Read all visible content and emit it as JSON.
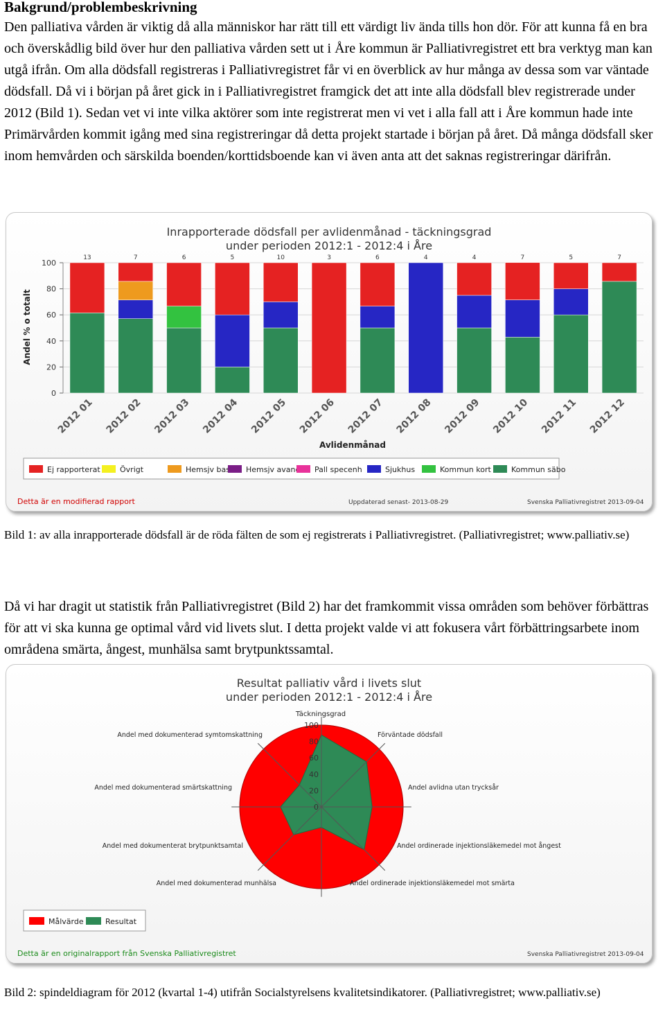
{
  "heading": "Bakgrund/problembeskrivning",
  "paragraph1": "Den palliativa vården är viktig då alla människor har rätt till ett värdigt liv ända tills hon dör. För att kunna få en bra och överskådlig bild över hur den palliativa vården sett ut i Åre kommun är Palliativregistret ett bra verktyg man kan utgå ifrån. Om alla dödsfall registreras i Palliativregistret får vi en överblick av hur många av dessa som var väntade dödsfall. Då vi i början på året gick in i Palliativregistret framgick det att inte alla dödsfall blev registrerade under 2012 (Bild 1). Sedan vet vi inte vilka aktörer som inte registrerat men vi vet i alla fall att i Åre kommun hade inte Primärvården kommit igång med sina registreringar då detta projekt startade i början på året. Då många dödsfall sker inom hemvården och särskilda boenden/korttidsboende kan vi även anta att det saknas registreringar därifrån.",
  "caption1": "Bild 1: av alla inrapporterade dödsfall är de röda fälten de som ej registrerats i Palliativregistret. (Palliativregistret; www.palliativ.se)",
  "paragraph2": "Då vi har dragit ut statistik från Palliativregistret (Bild 2) har det framkommit vissa områden som behöver förbättras för att vi ska kunna ge optimal vård vid livets slut. I detta projekt valde vi att fokusera vårt förbättringsarbete inom områdena smärta, ångest, munhälsa samt brytpunktssamtal.",
  "caption2": "Bild 2: spindeldiagram för 2012 (kvartal 1-4) utifrån Socialstyrelsens kvalitetsindikatorer. (Palliativregistret; www.palliativ.se)",
  "chart1": {
    "footer_left": "Detta är en modifierad rapport",
    "footer_middle": "Uppdaterad senast- 2013-08-29",
    "footer_right": "Svenska Palliativregistret 2013-09-04"
  },
  "chart2": {
    "footer_left": "Detta är en originalrapport från Svenska Palliativregistret",
    "footer_right": "Svenska Palliativregistret 2013-09-04"
  },
  "chart_data": [
    {
      "type": "bar",
      "stacked": true,
      "title": "Inrapporterade dödsfall per avlidenmånad - täckningsgrad",
      "subtitle": "under perioden 2012:1 - 2012:4 i Åre",
      "xlabel": "Avlidenmånad",
      "ylabel": "Andel % o totalt",
      "ylim": [
        0,
        100
      ],
      "yticks": [
        0,
        20,
        40,
        60,
        80,
        100
      ],
      "grid": true,
      "legend_position": "bottom",
      "categories": [
        "2012 01",
        "2012 02",
        "2012 03",
        "2012 04",
        "2012 05",
        "2012 06",
        "2012 07",
        "2012 08",
        "2012 09",
        "2012 10",
        "2012 11",
        "2012 12"
      ],
      "counts": [
        13,
        7,
        6,
        5,
        10,
        3,
        6,
        4,
        4,
        7,
        5,
        7
      ],
      "legend": [
        "Ej rapporterat",
        "Övrigt",
        "Hemsjv basal",
        "Hemsjv avanc",
        "Pall specenh",
        "Sjukhus",
        "Kommun kort",
        "Kommun säbo"
      ],
      "colors": {
        "Ej rapporterat": "#e52222",
        "Övrigt": "#f4f020",
        "Hemsjv basal": "#ee9a1e",
        "Hemsjv avanc": "#7a1d86",
        "Pall specenh": "#e8329a",
        "Sjukhus": "#2626c4",
        "Kommun kort": "#33c240",
        "Kommun säbo": "#2e8a56"
      },
      "series": [
        {
          "name": "Kommun säbo",
          "values": [
            61.5,
            57.1,
            50.0,
            20.0,
            50.0,
            0.0,
            50.0,
            0.0,
            50.0,
            42.9,
            60.0,
            85.7
          ]
        },
        {
          "name": "Kommun kort",
          "values": [
            0.0,
            0.0,
            16.7,
            0.0,
            0.0,
            0.0,
            0.0,
            0.0,
            0.0,
            0.0,
            0.0,
            0.0
          ]
        },
        {
          "name": "Sjukhus",
          "values": [
            0.0,
            14.3,
            0.0,
            40.0,
            20.0,
            0.0,
            16.7,
            100.0,
            25.0,
            28.6,
            20.0,
            0.0
          ]
        },
        {
          "name": "Pall specenh",
          "values": [
            0.0,
            0.0,
            0.0,
            0.0,
            0.0,
            0.0,
            0.0,
            0.0,
            0.0,
            0.0,
            0.0,
            0.0
          ]
        },
        {
          "name": "Hemsjv avanc",
          "values": [
            0.0,
            0.0,
            0.0,
            0.0,
            0.0,
            0.0,
            0.0,
            0.0,
            0.0,
            0.0,
            0.0,
            0.0
          ]
        },
        {
          "name": "Hemsjv basal",
          "values": [
            0.0,
            14.3,
            0.0,
            0.0,
            0.0,
            0.0,
            0.0,
            0.0,
            0.0,
            0.0,
            0.0,
            0.0
          ]
        },
        {
          "name": "Övrigt",
          "values": [
            0.0,
            0.0,
            0.0,
            0.0,
            0.0,
            0.0,
            0.0,
            0.0,
            0.0,
            0.0,
            0.0,
            0.0
          ]
        },
        {
          "name": "Ej rapporterat",
          "values": [
            38.5,
            14.3,
            33.3,
            40.0,
            30.0,
            100.0,
            33.3,
            0.0,
            25.0,
            28.6,
            20.0,
            14.3
          ]
        }
      ]
    },
    {
      "type": "radar",
      "title": "Resultat palliativ vård i livets slut",
      "subtitle": "under perioden 2012:1 - 2012:4 i Åre",
      "axis_title": "Täckningsgrad",
      "rlim": [
        0,
        100
      ],
      "rticks": [
        0,
        20,
        40,
        60,
        80,
        100
      ],
      "legend_position": "bottom-left",
      "axes": [
        "Förväntade dödsfall",
        "Andel avlidna utan trycksår",
        "Andel ordinerade injektionsläkemedel mot ångest",
        "Andel ordinerade injektionsläkemedel mot smärta",
        "Andel med dokumenterad munhälsa",
        "Andel med dokumenterat brytpunktsamtal",
        "Andel med dokumenterad smärtskattning",
        "Andel med dokumenterad symtomskattning"
      ],
      "series": [
        {
          "name": "Målvärde",
          "color": "#ff0000",
          "values": [
            100,
            100,
            100,
            100,
            100,
            100,
            100,
            100
          ]
        },
        {
          "name": "Resultat",
          "color": "#2e8a56",
          "values": [
            88,
            78,
            62,
            74,
            25,
            48,
            50,
            38
          ]
        }
      ]
    }
  ]
}
